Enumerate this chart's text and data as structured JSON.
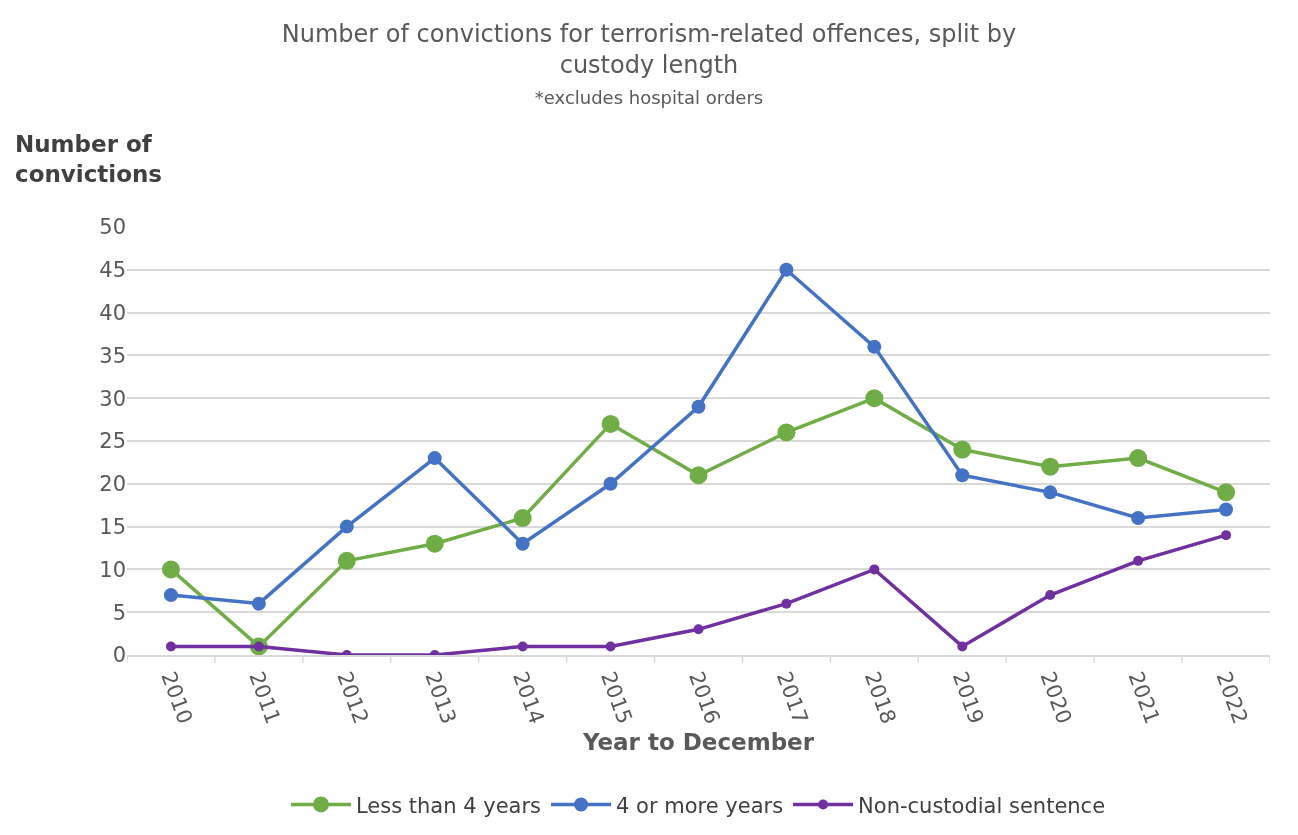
{
  "chart_data": {
    "type": "line",
    "title": "Number of convictions for terrorism-related offences, split by custody length",
    "subtitle": "*excludes hospital orders",
    "xlabel": "Year to December",
    "ylabel": "Number of convictions",
    "categories": [
      "2010",
      "2011",
      "2012",
      "2013",
      "2014",
      "2015",
      "2016",
      "2017",
      "2018",
      "2019",
      "2020",
      "2021",
      "2022"
    ],
    "series": [
      {
        "name": "Less than 4 years",
        "color": "#70ad47",
        "values": [
          10,
          1,
          11,
          13,
          16,
          27,
          21,
          26,
          30,
          24,
          22,
          23,
          19
        ]
      },
      {
        "name": "4 or more years",
        "color": "#4472c4",
        "values": [
          7,
          6,
          15,
          23,
          13,
          20,
          29,
          45,
          36,
          21,
          19,
          16,
          17
        ]
      },
      {
        "name": "Non-custodial sentence",
        "color": "#7030a0",
        "values": [
          1,
          1,
          0,
          0,
          1,
          1,
          3,
          6,
          10,
          1,
          7,
          11,
          14
        ]
      }
    ],
    "ylim": [
      0,
      50
    ],
    "yticks": [
      0,
      5,
      10,
      15,
      20,
      25,
      30,
      35,
      40,
      45,
      50
    ],
    "grid": "y",
    "legend": "bottom",
    "marker": "circle",
    "line_style": "solid"
  }
}
